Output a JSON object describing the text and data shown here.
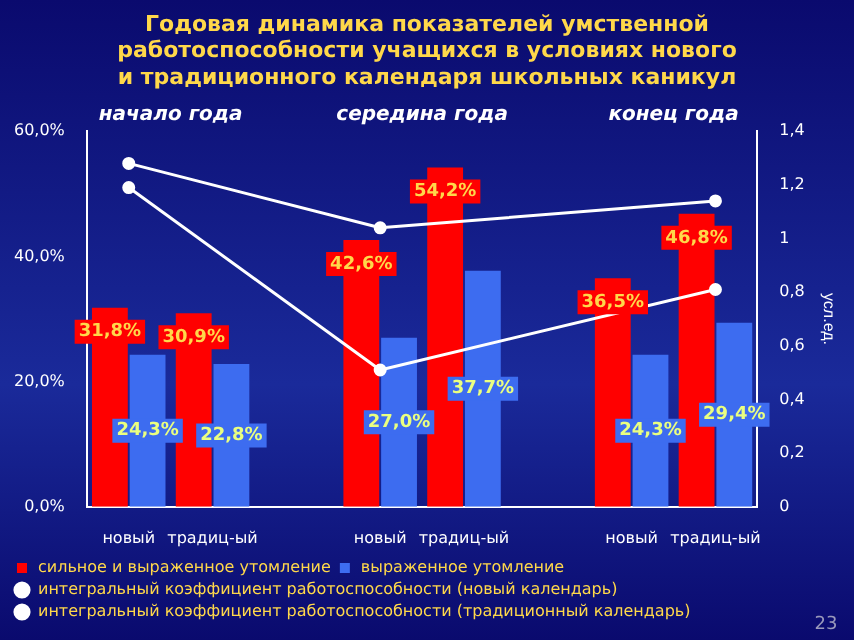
{
  "chart_data": {
    "type": "bar",
    "title": "Годовая динамика показателей  умственной работоспособности учащихся  в условиях нового  и традиционного календаря школьных  каникул",
    "y2label": "усл.ед.",
    "annotations": [
      "начало года",
      "середина года",
      "конец года",
      "23"
    ],
    "categories": [
      "новый",
      "традиц-ый",
      null,
      "новый",
      "традиц-ый",
      null,
      "новый",
      "традиц-ый"
    ],
    "series": [
      {
        "name": "сильное и выраженное утомление",
        "color": "#ff0000",
        "values": [
          31.8,
          30.9,
          null,
          42.6,
          54.2,
          null,
          36.5,
          46.8
        ]
      },
      {
        "name": "выраженное утомление",
        "color": "#3d6cf0",
        "values": [
          24.3,
          22.8,
          null,
          27.0,
          37.7,
          null,
          24.3,
          29.4
        ]
      },
      {
        "name": "интегральный коэффициент работоспособности (новый календарь)",
        "type": "line",
        "axis": "y2",
        "color": "#ffffff",
        "values": [
          1.28,
          null,
          null,
          1.04,
          null,
          null,
          null,
          1.14
        ]
      },
      {
        "name": "интегральный коэффициент работоспособности (традиционный календарь)",
        "type": "line",
        "axis": "y2",
        "color": "#ffffff",
        "values": [
          1.19,
          null,
          null,
          0.51,
          null,
          null,
          null,
          0.81
        ]
      }
    ],
    "ylim": [
      0,
      60
    ],
    "yticks": [
      {
        "value": 0,
        "label": "0,0%"
      },
      {
        "value": 20,
        "label": "20,0%"
      },
      {
        "value": 40,
        "label": "40,0%"
      },
      {
        "value": 60,
        "label": "60,0%"
      }
    ],
    "y2lim": [
      0,
      1.4
    ],
    "y2ticks": [
      0,
      {
        "value": 0.2,
        "label": "0,2"
      },
      {
        "value": 0.4,
        "label": "0,4"
      },
      {
        "value": 0.6,
        "label": "0,6"
      },
      {
        "value": 0.8,
        "label": "0,8"
      },
      1,
      {
        "value": 1.2,
        "label": "1,2"
      },
      {
        "value": 1.4,
        "label": "1,4"
      }
    ],
    "value_labels": [
      [
        "31,8%",
        "30,9%",
        null,
        "42,6%",
        "54,2%",
        null,
        "36,5%",
        "46,8%"
      ],
      [
        "24,3%",
        "22,8%",
        null,
        "27,0%",
        "37,7%",
        null,
        "24,3%",
        "29,4%"
      ]
    ],
    "grid": false,
    "legend": "bottom",
    "marker": "circle"
  }
}
